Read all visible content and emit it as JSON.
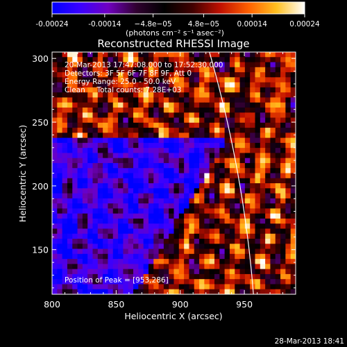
{
  "colorbar": {
    "tick_labels": [
      "-0.00024",
      "-0.00014",
      "−4.8e−05",
      "4.8e−05",
      "0.00014",
      "0.00024"
    ],
    "tick_values": [
      -0.00024,
      -0.00014,
      -4.8e-05,
      4.8e-05,
      0.00014,
      0.00024
    ],
    "range": [
      -0.00024,
      0.00024
    ],
    "unit_label": "(photons cm⁻² s⁻¹ asec⁻²)",
    "colors": [
      "#0000ff",
      "#3a00ff",
      "#7000c0",
      "#300030",
      "#000000",
      "#400000",
      "#c01000",
      "#ff6000",
      "#ffc020",
      "#ffffff"
    ]
  },
  "chart_data": {
    "type": "heatmap",
    "title": "Reconstructed RHESSI Image",
    "xlabel": "Heliocentric X (arcsec)",
    "ylabel": "Heliocentric Y (arcsec)",
    "xlim": [
      800,
      990
    ],
    "ylim": [
      115,
      305
    ],
    "xticks": [
      800,
      850,
      900,
      950
    ],
    "yticks": [
      150,
      200,
      250,
      300
    ],
    "annotations": [
      "20-Mar-2013 17:47:08.000 to 17:52:30.000",
      "Detectors: 3F 5F 6F 7F 8F 9F, Att 0",
      "Energy Range: 25.0 - 50.0 keV",
      "Clean     Total counts: 7.28E+03"
    ],
    "peak_label": "Position of Peak = [953,286]",
    "peak": [
      953,
      286
    ],
    "limb_color": "#ffffff"
  },
  "footer": {
    "timestamp": "28-Mar-2013 18:41"
  }
}
